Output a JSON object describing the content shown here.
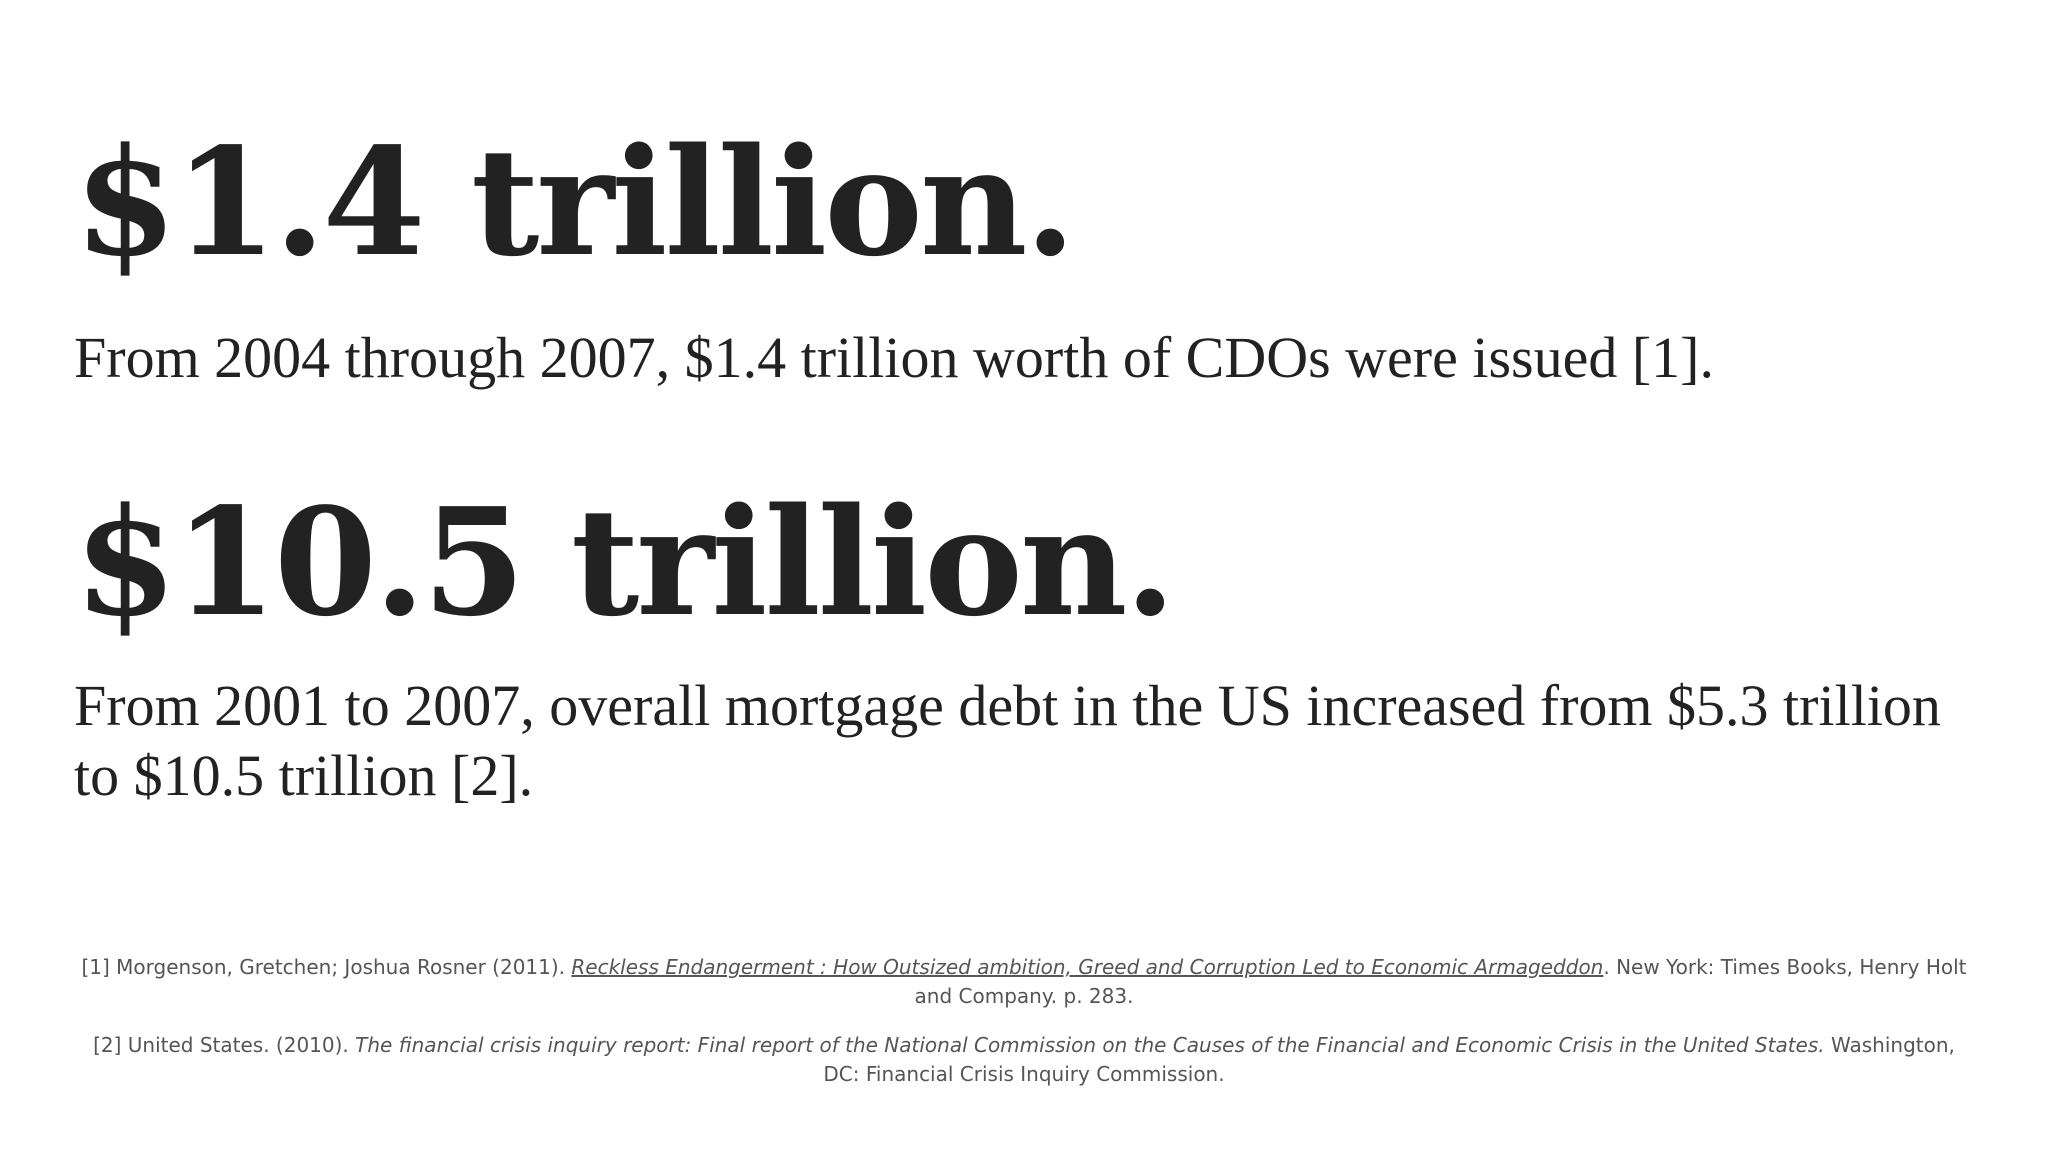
{
  "stats": [
    {
      "headline": "$1.4 trillion.",
      "description": "From 2004 through 2007, $1.4 trillion worth of CDOs were issued [1]."
    },
    {
      "headline": "$10.5 trillion.",
      "description": "From 2001 to 2007, overall mortgage debt in the US increased from $5.3 trillion to $10.5 trillion [2]."
    }
  ],
  "references": [
    {
      "prefix": "[1] Morgenson, Gretchen; Joshua Rosner (2011). ",
      "title": "Reckless Endangerment : How Outsized ambition, Greed and Corruption Led to Economic Armageddon",
      "suffix": ". New York: Times Books, Henry Holt and Company. p. 283."
    },
    {
      "prefix": "[2] United States. (2010). ",
      "title": "The financial crisis inquiry report: Final report of the National Commission on the Causes of the Financial and Economic Crisis in the United States.",
      "suffix": " Washington, DC: Financial Crisis Inquiry Commission."
    }
  ]
}
